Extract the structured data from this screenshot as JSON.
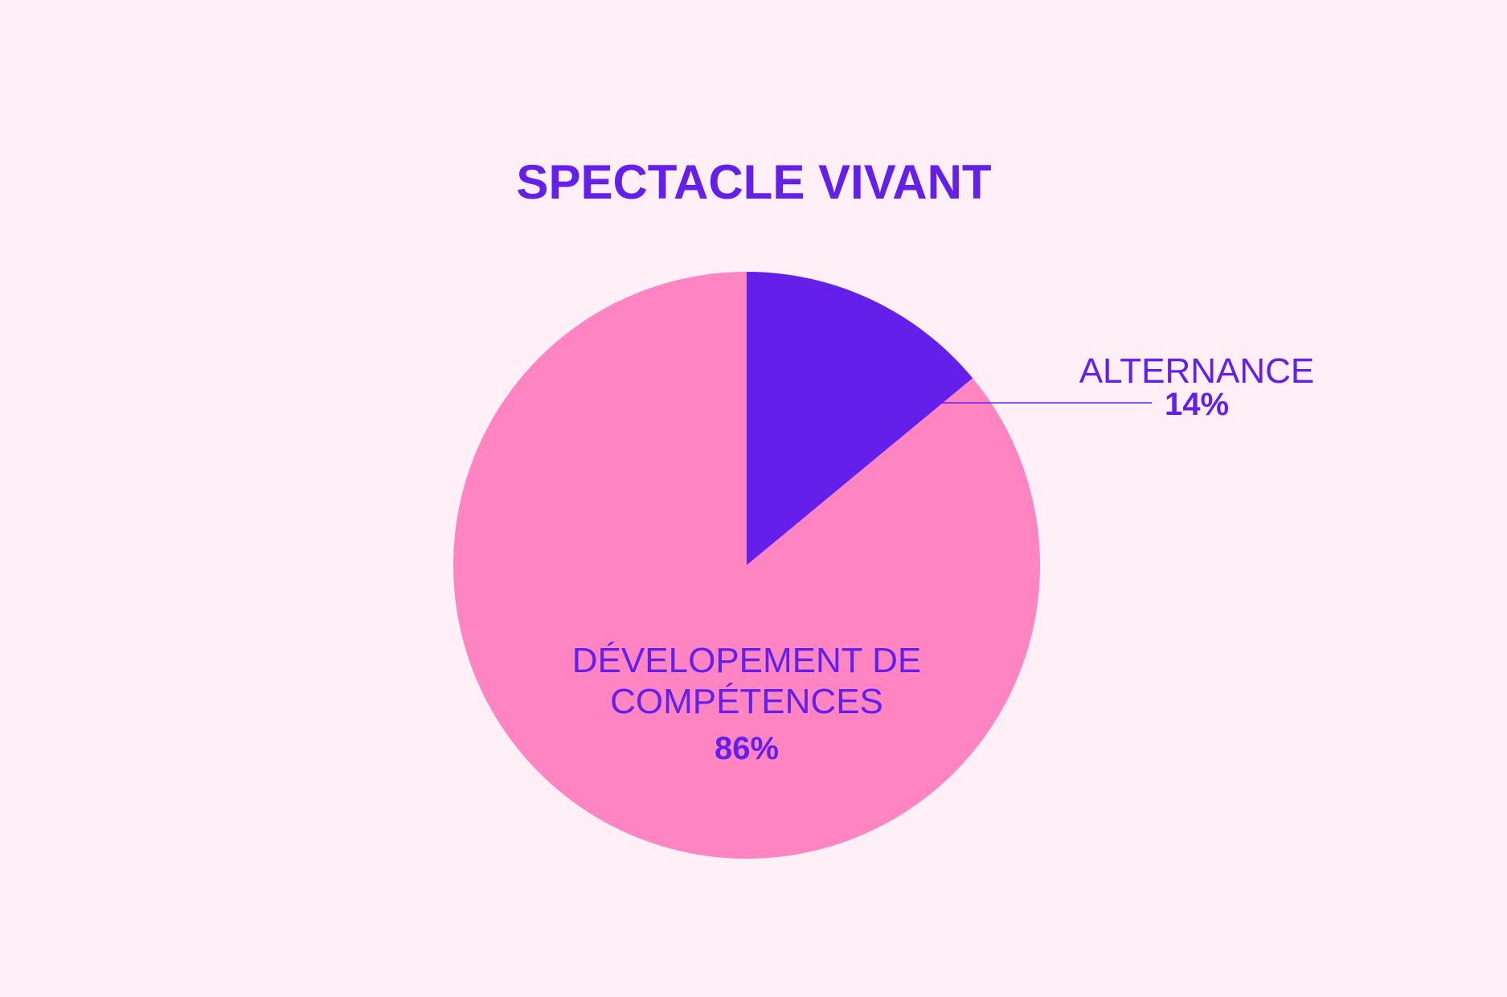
{
  "chart_data": {
    "type": "pie",
    "title": "SPECTACLE VIVANT",
    "categories": [
      "ALTERNANCE",
      "DÉVELOPEMENT DE COMPÉTENCES"
    ],
    "values": [
      14,
      86
    ],
    "value_labels": [
      "14%",
      "86%"
    ],
    "colors": [
      "#6420ea",
      "#ff85c2"
    ]
  }
}
